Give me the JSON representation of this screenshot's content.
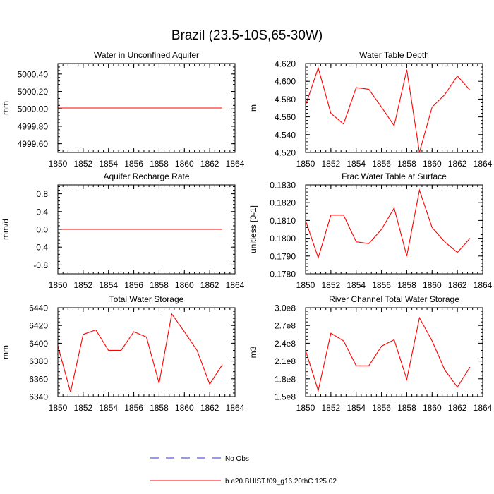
{
  "title": "Brazil (23.5-10S,65-30W)",
  "colors": {
    "model": "#ff0000",
    "obs": "#3333cc",
    "axis": "#000000"
  },
  "legend": {
    "obs_label": "No Obs",
    "model_label": "b.e20.BHIST.f09_g16.20thC.125.02"
  },
  "chart_data": [
    {
      "id": "p1",
      "type": "line",
      "title": "Water in Unconfined Aquifer",
      "xlabel": "",
      "ylabel": "mm",
      "xlim": [
        1850,
        1864
      ],
      "ylim": [
        4999.5,
        5000.52
      ],
      "xticks": [
        1850,
        1852,
        1854,
        1856,
        1858,
        1860,
        1862,
        1864
      ],
      "yticks": [
        4999.6,
        4999.8,
        5000.0,
        5000.2,
        5000.4
      ],
      "ytick_labels": [
        "4999.60",
        "4999.80",
        "5000.00",
        "5000.20",
        "5000.40"
      ],
      "series": [
        {
          "name": "b.e20.BHIST.f09_g16.20thC.125.02",
          "x": [
            1850,
            1851,
            1852,
            1853,
            1854,
            1855,
            1856,
            1857,
            1858,
            1859,
            1860,
            1861,
            1862,
            1863
          ],
          "values": [
            5000.01,
            5000.01,
            5000.01,
            5000.01,
            5000.01,
            5000.01,
            5000.01,
            5000.01,
            5000.01,
            5000.01,
            5000.01,
            5000.01,
            5000.01,
            5000.01
          ]
        }
      ]
    },
    {
      "id": "p2",
      "type": "line",
      "title": "Water Table Depth",
      "xlabel": "",
      "ylabel": "m",
      "xlim": [
        1850,
        1864
      ],
      "ylim": [
        4.52,
        4.62
      ],
      "xticks": [
        1850,
        1852,
        1854,
        1856,
        1858,
        1860,
        1862,
        1864
      ],
      "yticks": [
        4.52,
        4.54,
        4.56,
        4.58,
        4.6,
        4.62
      ],
      "ytick_labels": [
        "4.520",
        "4.540",
        "4.560",
        "4.580",
        "4.600",
        "4.620"
      ],
      "series": [
        {
          "name": "b.e20.BHIST.f09_g16.20thC.125.02",
          "x": [
            1850,
            1851,
            1852,
            1853,
            1854,
            1855,
            1856,
            1857,
            1858,
            1859,
            1860,
            1861,
            1862,
            1863
          ],
          "values": [
            4.573,
            4.615,
            4.564,
            4.552,
            4.593,
            4.591,
            4.571,
            4.55,
            4.613,
            4.52,
            4.571,
            4.585,
            4.606,
            4.59
          ]
        }
      ]
    },
    {
      "id": "p3",
      "type": "line",
      "title": "Aquifer Recharge Rate",
      "xlabel": "",
      "ylabel": "mm/d",
      "xlim": [
        1850,
        1864
      ],
      "ylim": [
        -1.0,
        1.0
      ],
      "xticks": [
        1850,
        1852,
        1854,
        1856,
        1858,
        1860,
        1862,
        1864
      ],
      "yticks": [
        -0.8,
        -0.4,
        0.0,
        0.4,
        0.8
      ],
      "ytick_labels": [
        "-0.8",
        "-0.4",
        "0.0",
        "0.4",
        "0.8"
      ],
      "series": [
        {
          "name": "b.e20.BHIST.f09_g16.20thC.125.02",
          "x": [
            1850,
            1851,
            1852,
            1853,
            1854,
            1855,
            1856,
            1857,
            1858,
            1859,
            1860,
            1861,
            1862,
            1863
          ],
          "values": [
            0,
            0,
            0,
            0,
            0,
            0,
            0,
            0,
            0,
            0,
            0,
            0,
            0,
            0
          ]
        }
      ]
    },
    {
      "id": "p4",
      "type": "line",
      "title": "Frac Water Table at Surface",
      "xlabel": "",
      "ylabel": "unitless [0-1]",
      "xlim": [
        1850,
        1864
      ],
      "ylim": [
        0.178,
        0.183
      ],
      "xticks": [
        1850,
        1852,
        1854,
        1856,
        1858,
        1860,
        1862,
        1864
      ],
      "yticks": [
        0.178,
        0.179,
        0.18,
        0.181,
        0.182,
        0.183
      ],
      "ytick_labels": [
        "0.1780",
        "0.1790",
        "0.1800",
        "0.1810",
        "0.1820",
        "0.1830"
      ],
      "series": [
        {
          "name": "b.e20.BHIST.f09_g16.20thC.125.02",
          "x": [
            1850,
            1851,
            1852,
            1853,
            1854,
            1855,
            1856,
            1857,
            1858,
            1859,
            1860,
            1861,
            1862,
            1863
          ],
          "values": [
            0.181,
            0.1789,
            0.1813,
            0.1813,
            0.1798,
            0.1797,
            0.1805,
            0.1817,
            0.179,
            0.1827,
            0.1806,
            0.1798,
            0.1792,
            0.18
          ]
        }
      ]
    },
    {
      "id": "p5",
      "type": "line",
      "title": "Total Water Storage",
      "xlabel": "",
      "ylabel": "mm",
      "xlim": [
        1850,
        1864
      ],
      "ylim": [
        6340,
        6440
      ],
      "xticks": [
        1850,
        1852,
        1854,
        1856,
        1858,
        1860,
        1862,
        1864
      ],
      "yticks": [
        6340,
        6360,
        6380,
        6400,
        6420,
        6440
      ],
      "ytick_labels": [
        "6340",
        "6360",
        "6380",
        "6400",
        "6420",
        "6440"
      ],
      "series": [
        {
          "name": "b.e20.BHIST.f09_g16.20thC.125.02",
          "x": [
            1850,
            1851,
            1852,
            1853,
            1854,
            1855,
            1856,
            1857,
            1858,
            1859,
            1860,
            1861,
            1862,
            1863
          ],
          "values": [
            6397,
            6345,
            6410,
            6415,
            6392,
            6392,
            6413,
            6407,
            6355,
            6433,
            6413,
            6392,
            6354,
            6376
          ]
        }
      ]
    },
    {
      "id": "p6",
      "type": "line",
      "title": "River Channel Total Water Storage",
      "xlabel": "",
      "ylabel": "m3",
      "xlim": [
        1850,
        1864
      ],
      "ylim": [
        150000000,
        300000000
      ],
      "xticks": [
        1850,
        1852,
        1854,
        1856,
        1858,
        1860,
        1862,
        1864
      ],
      "yticks": [
        150000000,
        180000000,
        210000000,
        240000000,
        270000000,
        300000000
      ],
      "ytick_labels": [
        "1.5e8",
        "1.8e8",
        "2.1e8",
        "2.4e8",
        "2.7e8",
        "3.0e8"
      ],
      "series": [
        {
          "name": "b.e20.BHIST.f09_g16.20thC.125.02",
          "x": [
            1850,
            1851,
            1852,
            1853,
            1854,
            1855,
            1856,
            1857,
            1858,
            1859,
            1860,
            1861,
            1862,
            1863
          ],
          "values": [
            228000000,
            160000000,
            257000000,
            244000000,
            202000000,
            202000000,
            235000000,
            246000000,
            179000000,
            283000000,
            244000000,
            195000000,
            166000000,
            200000000
          ]
        }
      ]
    }
  ]
}
